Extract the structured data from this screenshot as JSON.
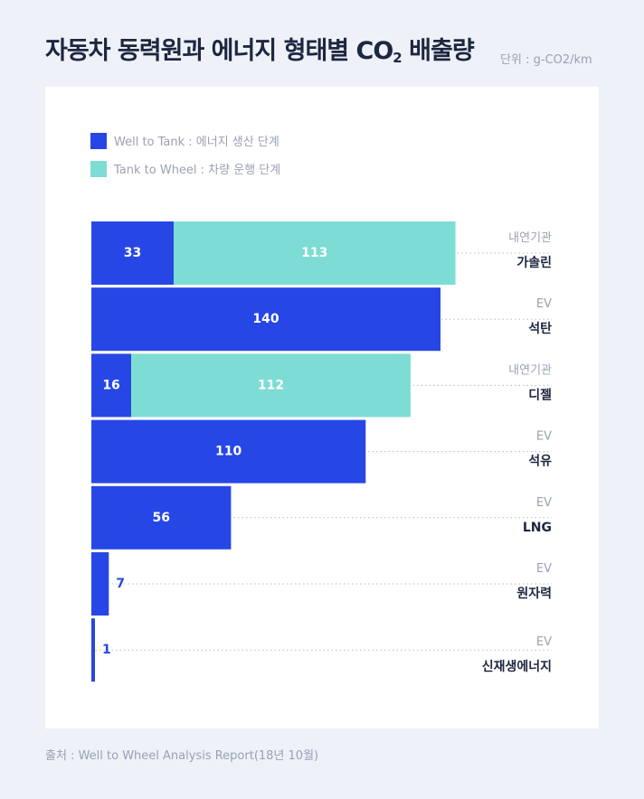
{
  "title": {
    "main": "자동차 동력원과 에너지 형태별 CO",
    "subscript": "2",
    "suffix": " 배출량",
    "unit": "단위 : g-CO2/km"
  },
  "colors": {
    "well_to_tank": "#2746e6",
    "tank_to_wheel": "#7ddcd3",
    "category_label": "#1e2640",
    "type_label": "#9aa1b4"
  },
  "legend": [
    {
      "label": "Well to Tank : 에너지 생산 단계",
      "color": "#2746e6"
    },
    {
      "label": "Tank to Wheel : 차량 운행 단계",
      "color": "#7ddcd3"
    }
  ],
  "chart_data": {
    "type": "bar",
    "orientation": "horizontal",
    "stacked": true,
    "categories": [
      "가솔린",
      "석탄",
      "디젤",
      "석유",
      "LNG",
      "원자력",
      "신재생에너지"
    ],
    "category_types": [
      "내연기관",
      "EV",
      "내연기관",
      "EV",
      "EV",
      "EV",
      "EV"
    ],
    "series": [
      {
        "name": "Well to Tank : 에너지 생산 단계",
        "values": [
          33,
          140,
          16,
          110,
          56,
          7,
          1
        ]
      },
      {
        "name": "Tank to Wheel : 차량 운행 단계",
        "values": [
          113,
          0,
          112,
          0,
          0,
          0,
          0
        ]
      }
    ],
    "xlim": [
      0,
      150
    ],
    "grid": false,
    "legend_position": "top-left"
  },
  "source": "출처 : Well to Wheel Analysis Report(18년 10월)"
}
